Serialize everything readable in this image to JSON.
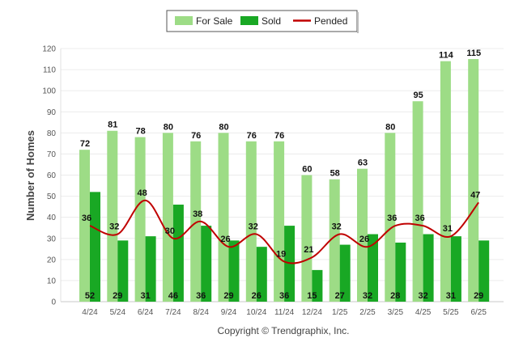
{
  "chart_data": {
    "type": "bar",
    "categories": [
      "4/24",
      "5/24",
      "6/24",
      "7/24",
      "8/24",
      "9/24",
      "10/24",
      "11/24",
      "12/24",
      "1/25",
      "2/25",
      "3/25",
      "4/25",
      "5/25",
      "6/25"
    ],
    "series": [
      {
        "name": "For Sale",
        "kind": "bar",
        "color": "#9ddc86",
        "values": [
          72,
          81,
          78,
          80,
          76,
          80,
          76,
          76,
          60,
          58,
          63,
          80,
          95,
          114,
          115
        ]
      },
      {
        "name": "Sold",
        "kind": "bar",
        "color": "#19a824",
        "values": [
          52,
          29,
          31,
          46,
          36,
          29,
          26,
          36,
          15,
          27,
          32,
          28,
          32,
          31,
          29
        ]
      },
      {
        "name": "Pended",
        "kind": "line",
        "color": "#c00000",
        "values": [
          36,
          32,
          48,
          30,
          38,
          26,
          32,
          19,
          21,
          32,
          26,
          36,
          36,
          31,
          47
        ]
      }
    ],
    "ylabel": "Number of Homes",
    "xlabel": "",
    "ylim": [
      0,
      120
    ],
    "yticks": [
      0,
      10,
      20,
      30,
      40,
      50,
      60,
      70,
      80,
      90,
      100,
      110,
      120
    ],
    "grid": true,
    "legend_position": "top-center"
  },
  "copyright": "Copyright © Trendgraphix, Inc."
}
